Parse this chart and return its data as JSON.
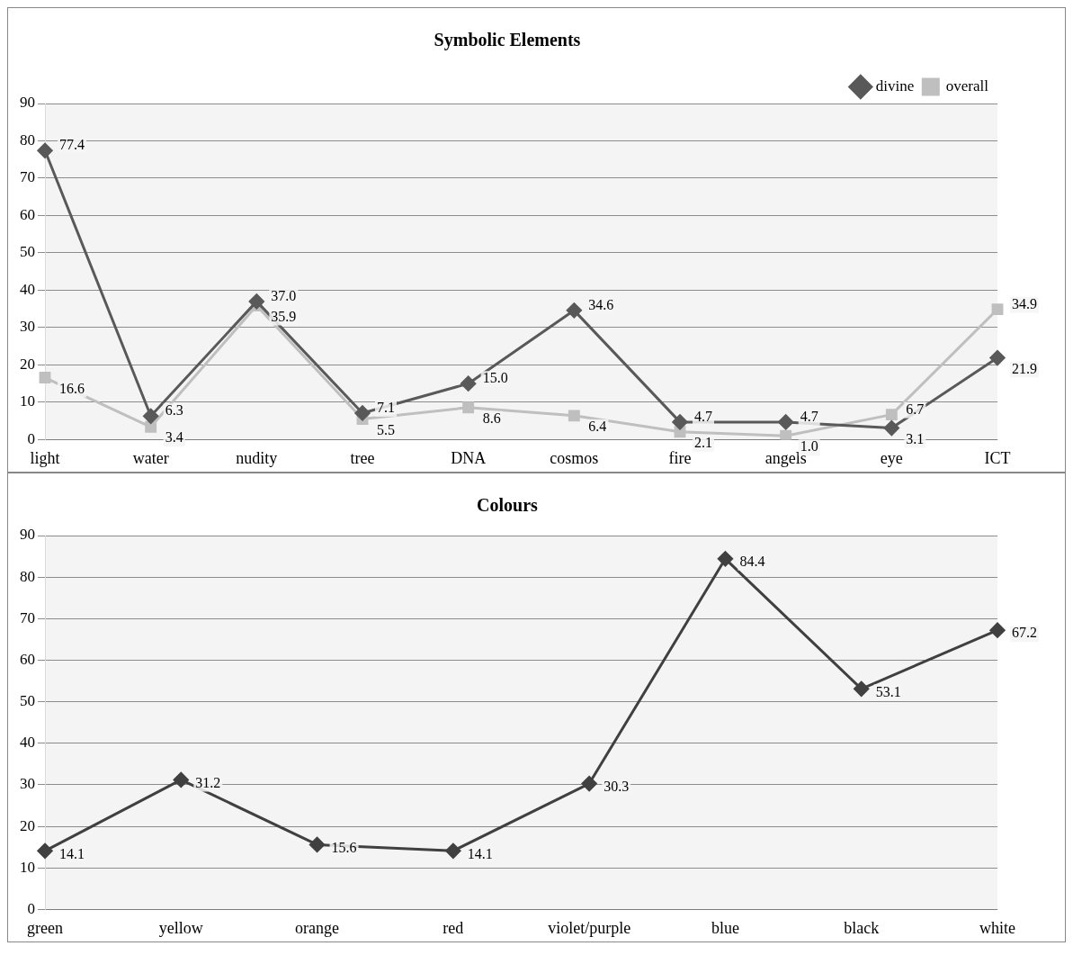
{
  "chart_data": [
    {
      "type": "line",
      "title": "Symbolic Elements",
      "categories": [
        "light",
        "water",
        "nudity",
        "tree",
        "DNA",
        "cosmos",
        "fire",
        "angels",
        "eye",
        "ICT"
      ],
      "series": [
        {
          "name": "divine",
          "color": "#595959",
          "values": [
            77.4,
            6.3,
            37.0,
            7.1,
            15.0,
            34.6,
            4.7,
            4.7,
            3.1,
            21.9
          ],
          "value_labels": [
            "77.4",
            "6.3",
            "37.0",
            "7.1",
            "15.0",
            "34.6",
            "4.7",
            "4.7",
            "3.1",
            "21.9"
          ],
          "marker": "diamond"
        },
        {
          "name": "overall",
          "color": "#bfbfbf",
          "values": [
            16.6,
            3.4,
            35.9,
            5.5,
            8.6,
            6.4,
            2.1,
            1.0,
            6.7,
            34.9
          ],
          "value_labels": [
            "16.6",
            "3.4",
            "35.9",
            "5.5",
            "8.6",
            "6.4",
            "2.1",
            "1.0",
            "6.7",
            "34.9"
          ],
          "marker": "square"
        }
      ],
      "ylim": [
        0,
        90
      ],
      "yticks": [
        0,
        10,
        20,
        30,
        40,
        50,
        60,
        70,
        80,
        90
      ],
      "grid": "y",
      "legend": "top right",
      "line_style": "solid"
    },
    {
      "type": "line",
      "title": "Colours",
      "categories": [
        "green",
        "yellow",
        "orange",
        "red",
        "violet/purple",
        "blue",
        "black",
        "white"
      ],
      "series": [
        {
          "color": "#404040",
          "values": [
            14.1,
            31.2,
            15.6,
            14.1,
            30.3,
            84.4,
            53.1,
            67.2
          ],
          "marker": "diamond"
        }
      ],
      "ylim": [
        0,
        90
      ],
      "yticks": [
        0,
        10,
        20,
        30,
        40,
        50,
        60,
        70,
        80,
        90
      ],
      "grid": "y",
      "data_labels": true,
      "line_style": "solid"
    }
  ]
}
